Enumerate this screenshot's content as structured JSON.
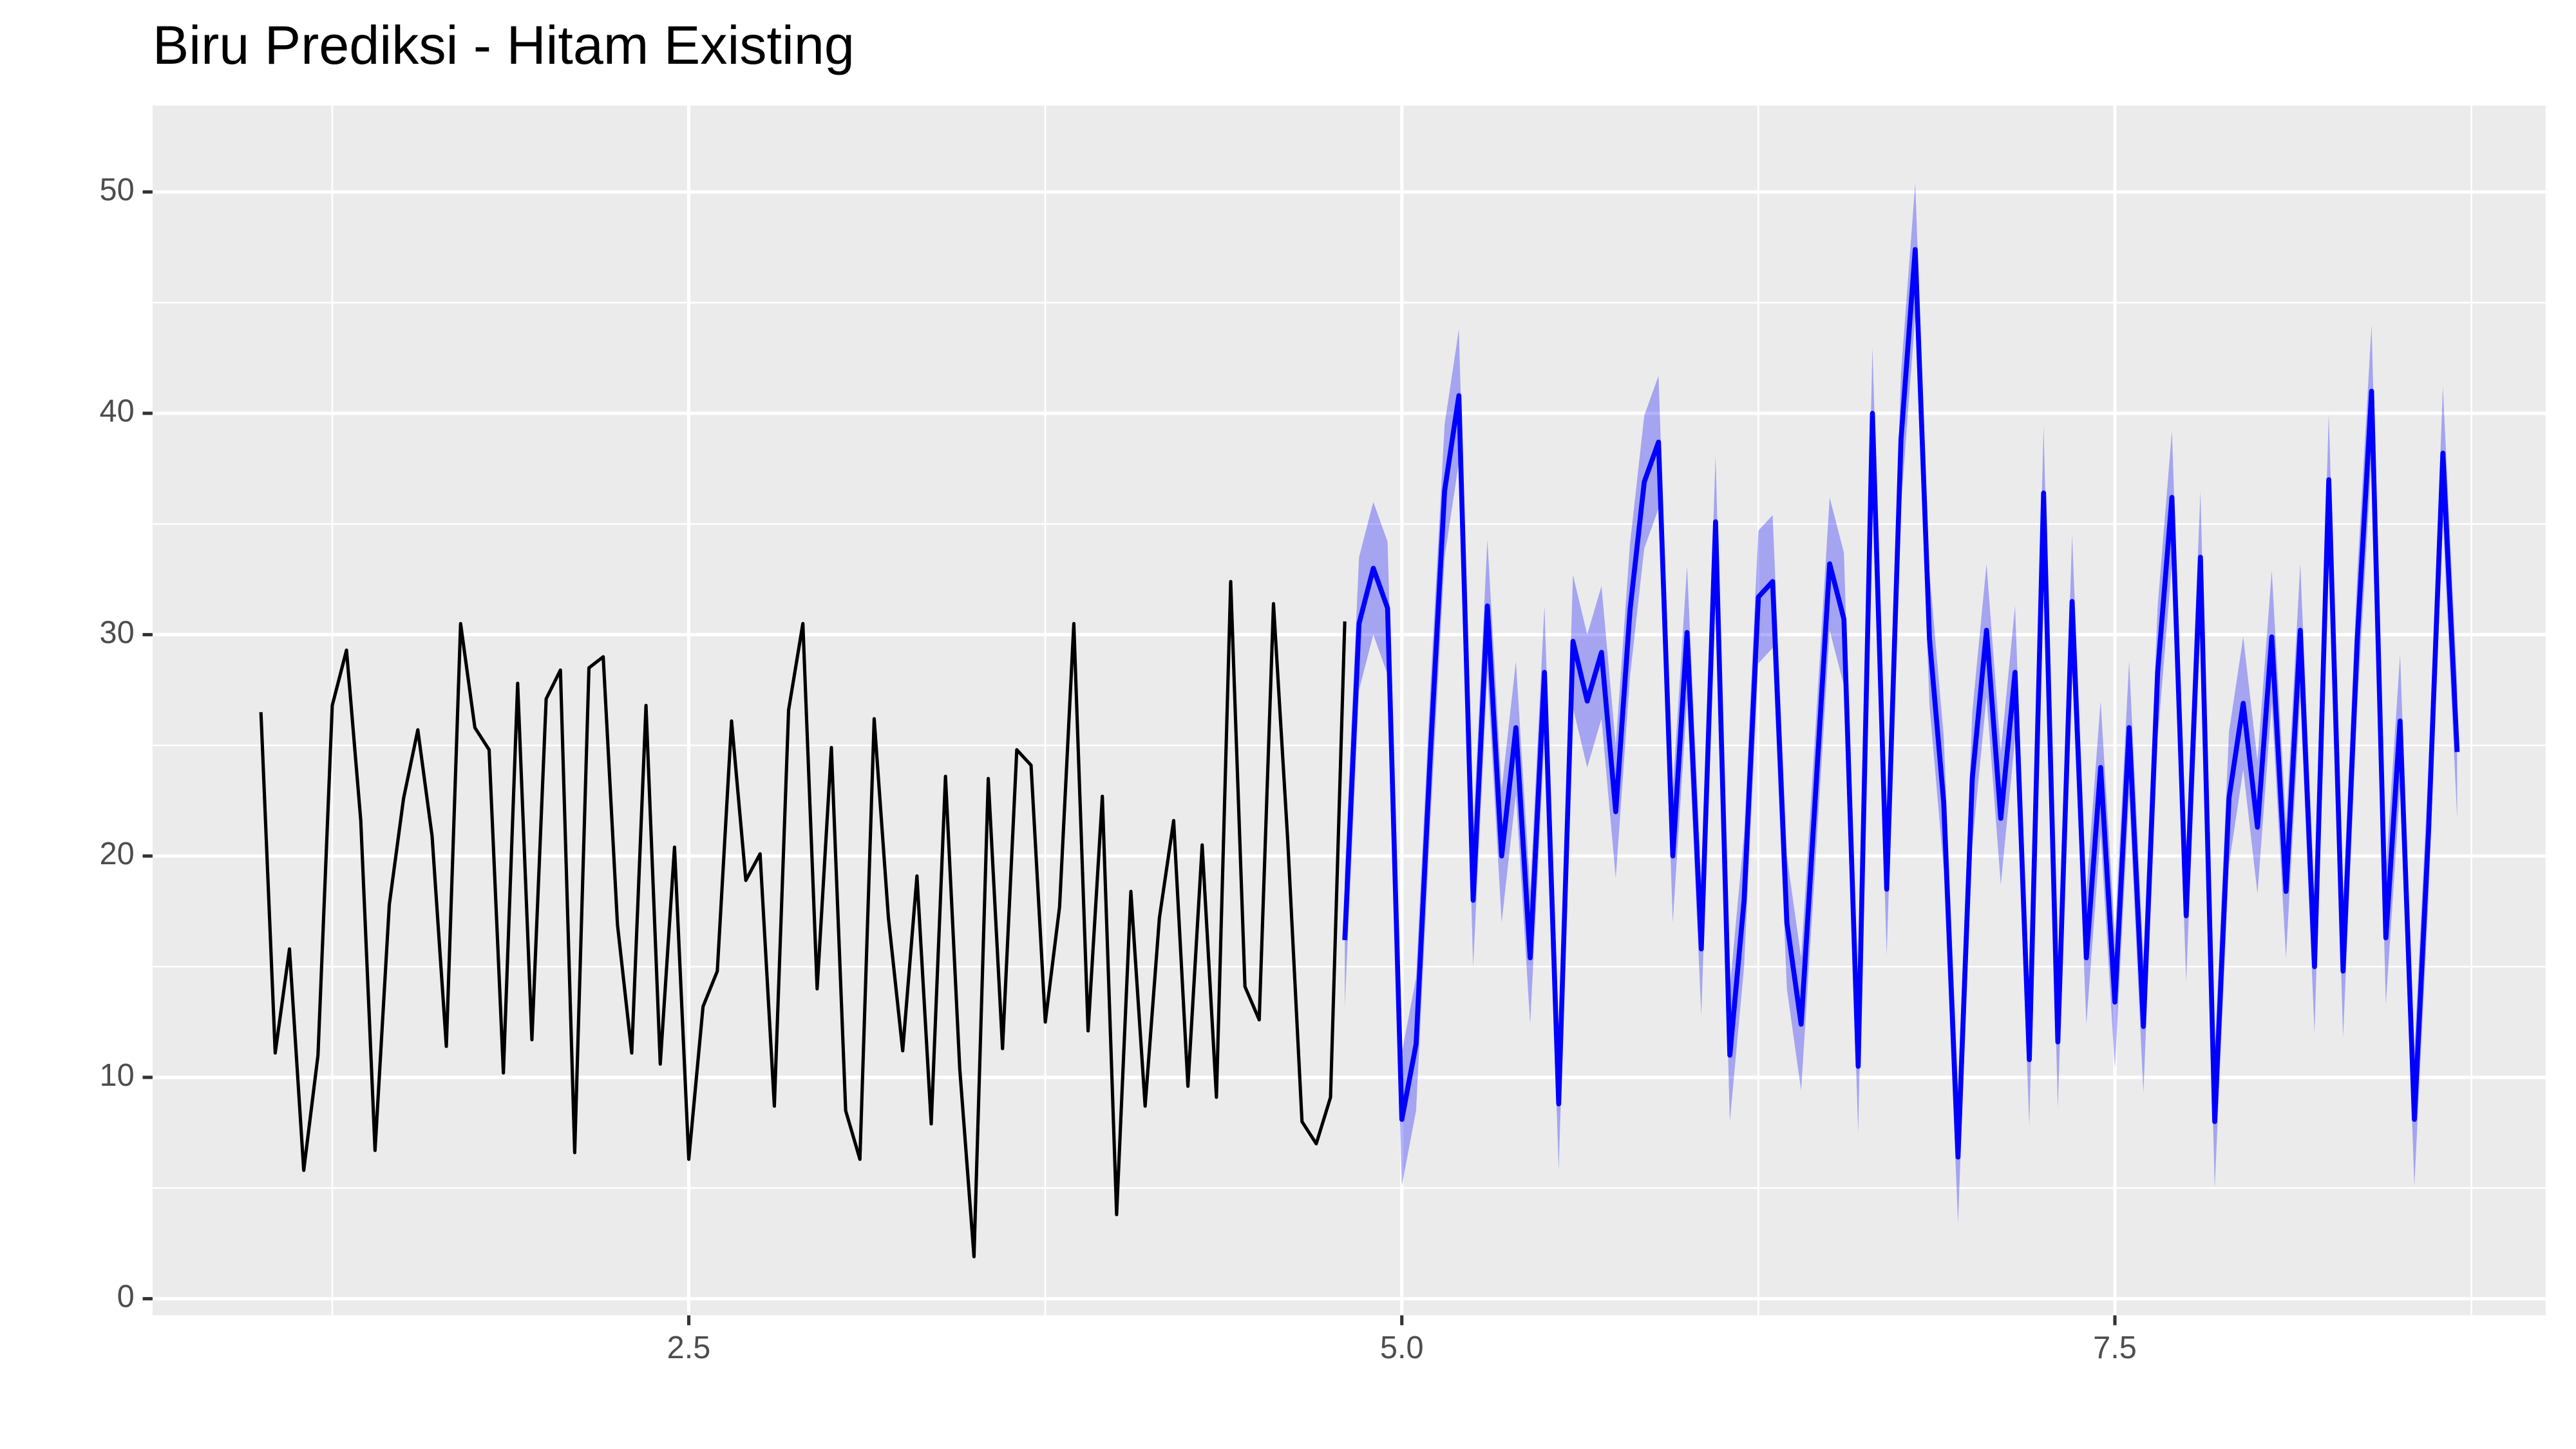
{
  "chart_data": {
    "type": "line",
    "title": "Biru Prediksi - Hitam Existing",
    "xlim": [
      0.62,
      9.01
    ],
    "ylim": [
      -0.75,
      53.9
    ],
    "xticks": [
      2.5,
      {
        "value": 5,
        "label": "5.0"
      },
      7.5
    ],
    "yticks": [
      0,
      10,
      20,
      30,
      40,
      50
    ],
    "x_minor_grid": [
      1.25,
      3.75,
      6.25,
      8.75
    ],
    "y_minor_grid": [
      5,
      15,
      25,
      35,
      45
    ],
    "grid": true,
    "background": "#ebebeb",
    "series": [
      {
        "color": "#000000",
        "x": [
          1.0,
          1.05,
          1.1,
          1.15,
          1.2,
          1.25,
          1.3,
          1.35,
          1.4,
          1.45,
          1.5,
          1.55,
          1.6,
          1.65,
          1.7,
          1.75,
          1.8,
          1.85,
          1.9,
          1.95,
          2.0,
          2.05,
          2.1,
          2.15,
          2.2,
          2.25,
          2.3,
          2.35,
          2.4,
          2.45,
          2.5,
          2.55,
          2.6,
          2.65,
          2.7,
          2.75,
          2.8,
          2.85,
          2.9,
          2.95,
          3.0,
          3.05,
          3.1,
          3.15,
          3.2,
          3.25,
          3.3,
          3.35,
          3.4,
          3.45,
          3.5,
          3.55,
          3.6,
          3.65,
          3.7,
          3.75,
          3.8,
          3.85,
          3.9,
          3.95,
          4.0,
          4.05,
          4.1,
          4.15,
          4.2,
          4.25,
          4.3,
          4.35,
          4.4,
          4.45,
          4.5,
          4.55,
          4.6,
          4.65,
          4.7,
          4.75,
          4.8
        ],
        "values": [
          26.5,
          11.1,
          15.8,
          5.8,
          11.0,
          26.8,
          29.3,
          21.6,
          6.7,
          17.8,
          22.6,
          25.7,
          20.9,
          11.4,
          30.5,
          25.8,
          24.8,
          10.2,
          27.8,
          11.7,
          27.1,
          28.4,
          6.6,
          28.5,
          29.0,
          16.9,
          11.1,
          26.8,
          10.6,
          20.4,
          6.3,
          13.2,
          14.8,
          26.1,
          18.9,
          20.1,
          8.7,
          26.6,
          30.5,
          14.0,
          24.9,
          8.5,
          6.3,
          26.2,
          17.2,
          11.2,
          19.1,
          7.9,
          23.6,
          10.4,
          1.9,
          23.5,
          11.3,
          24.8,
          24.1,
          12.5,
          17.7,
          30.5,
          12.1,
          22.7,
          3.8,
          18.4,
          8.7,
          17.2,
          21.6,
          9.6,
          20.5,
          9.1,
          32.4,
          14.1,
          12.6,
          31.4,
          20.7,
          8.0,
          7.0,
          9.1,
          30.6
        ]
      },
      {
        "color": "#0000ff",
        "band": 3,
        "band_opacity": 0.3,
        "x": [
          4.8,
          4.85,
          4.9,
          4.95,
          5.0,
          5.05,
          5.1,
          5.15,
          5.2,
          5.25,
          5.3,
          5.35,
          5.4,
          5.45,
          5.5,
          5.55,
          5.6,
          5.65,
          5.7,
          5.75,
          5.8,
          5.85,
          5.9,
          5.95,
          6.0,
          6.05,
          6.1,
          6.15,
          6.2,
          6.25,
          6.3,
          6.35,
          6.4,
          6.45,
          6.5,
          6.55,
          6.6,
          6.65,
          6.7,
          6.75,
          6.8,
          6.85,
          6.9,
          6.95,
          7.0,
          7.05,
          7.1,
          7.15,
          7.2,
          7.25,
          7.3,
          7.35,
          7.4,
          7.45,
          7.5,
          7.55,
          7.6,
          7.65,
          7.7,
          7.75,
          7.8,
          7.85,
          7.9,
          7.95,
          8.0,
          8.05,
          8.1,
          8.15,
          8.2,
          8.25,
          8.3,
          8.35,
          8.4,
          8.45,
          8.5,
          8.55,
          8.6,
          8.65,
          8.7
        ],
        "values": [
          16.2,
          30.5,
          33.0,
          31.2,
          8.1,
          11.5,
          24.6,
          36.5,
          40.8,
          18.0,
          31.3,
          20.0,
          25.8,
          15.4,
          28.3,
          8.8,
          29.7,
          27.0,
          29.2,
          22.0,
          31.1,
          36.9,
          38.7,
          20.0,
          30.1,
          15.8,
          35.1,
          11.0,
          18.0,
          31.7,
          32.4,
          17.0,
          12.4,
          22.7,
          33.2,
          30.7,
          10.5,
          40.0,
          18.5,
          38.8,
          47.4,
          29.8,
          22.4,
          6.4,
          23.5,
          30.2,
          21.7,
          28.3,
          10.8,
          36.4,
          11.6,
          31.5,
          15.4,
          24.0,
          13.4,
          25.8,
          12.3,
          28.3,
          36.2,
          17.3,
          33.5,
          8.0,
          22.6,
          26.9,
          21.3,
          29.9,
          18.4,
          30.2,
          15.0,
          37.0,
          14.8,
          29.8,
          41.0,
          16.3,
          26.1,
          8.1,
          21.2,
          38.2,
          24.7
        ]
      }
    ]
  }
}
